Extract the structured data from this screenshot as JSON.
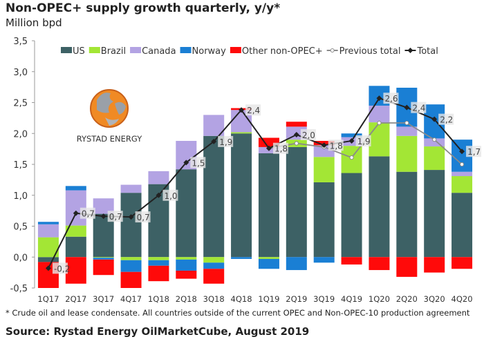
{
  "header": {
    "title": "Non-OPEC+ supply growth quarterly, y/y*",
    "subtitle": "Million bpd"
  },
  "logo": {
    "text": "RYSTAD ENERGY"
  },
  "footer": {
    "footnote": "* Crude oil and lease condensate. All countries outside of the current OPEC and Non-OPEC-10 production agreement",
    "source": "Source: Rystad Energy OilMarketCube, August 2019"
  },
  "chart_data": {
    "type": "bar",
    "stacked": true,
    "title": "Non-OPEC+ supply growth quarterly, y/y*",
    "ylabel": "Million bpd",
    "ylim": [
      -0.5,
      3.5
    ],
    "yticks": [
      "-0,5",
      "0,0",
      "0,5",
      "1,0",
      "1,5",
      "2,0",
      "2,5",
      "3,0",
      "3,5"
    ],
    "ytick_values": [
      -0.5,
      0,
      0.5,
      1,
      1.5,
      2,
      2.5,
      3,
      3.5
    ],
    "grid": false,
    "legend": "top",
    "categories": [
      "1Q17",
      "2Q17",
      "3Q17",
      "4Q17",
      "1Q18",
      "2Q18",
      "3Q18",
      "4Q18",
      "1Q19",
      "2Q19",
      "3Q19",
      "4Q19",
      "1Q20",
      "2Q20",
      "3Q20",
      "4Q20"
    ],
    "series": [
      {
        "name": "US",
        "color": "#3d6165",
        "values": [
          -0.08,
          0.33,
          0.7,
          1.04,
          1.18,
          1.42,
          1.96,
          2.0,
          1.68,
          1.78,
          1.21,
          1.36,
          1.63,
          1.38,
          1.41,
          1.04
        ]
      },
      {
        "name": "Brazil",
        "color": "#a3e635",
        "values": [
          0.32,
          0.18,
          -0.01,
          -0.05,
          -0.05,
          -0.04,
          -0.09,
          0.02,
          -0.03,
          0.12,
          0.41,
          0.44,
          0.55,
          0.58,
          0.38,
          0.27
        ]
      },
      {
        "name": "Canada",
        "color": "#b3a3e3",
        "values": [
          0.21,
          0.57,
          0.25,
          0.13,
          0.21,
          0.46,
          0.34,
          0.36,
          0.1,
          0.21,
          0.19,
          0.14,
          0.27,
          0.15,
          0.13,
          0.07
        ]
      },
      {
        "name": "Norway",
        "color": "#1a7fd4",
        "values": [
          0.04,
          0.07,
          -0.03,
          -0.19,
          -0.09,
          -0.18,
          -0.1,
          -0.03,
          -0.16,
          -0.21,
          -0.09,
          0.06,
          0.32,
          0.63,
          0.55,
          0.52
        ]
      },
      {
        "name": "Other non-OPEC+",
        "color": "#ff0a0a",
        "values": [
          -0.42,
          -0.43,
          -0.25,
          -0.26,
          -0.25,
          -0.13,
          -0.24,
          0.03,
          0.15,
          0.08,
          0.07,
          -0.12,
          -0.21,
          -0.32,
          -0.25,
          -0.19
        ]
      }
    ],
    "lines": [
      {
        "name": "Previous total",
        "color": "#8a8a8a",
        "marker": "open-circle",
        "values": [
          null,
          null,
          null,
          null,
          null,
          null,
          null,
          null,
          1.76,
          1.84,
          1.78,
          1.61,
          2.17,
          2.17,
          1.9,
          1.5
        ]
      },
      {
        "name": "Total",
        "color": "#222222",
        "marker": "diamond",
        "values": [
          -0.18,
          0.71,
          0.66,
          0.65,
          1.0,
          1.53,
          1.87,
          2.38,
          1.76,
          1.98,
          1.81,
          1.88,
          2.57,
          2.42,
          2.23,
          1.71
        ],
        "labels": [
          "-0,2",
          "0,7",
          "0,7",
          "0,7",
          "1,0",
          "1,5",
          "1,9",
          "2,4",
          "1,8",
          "2,0",
          "1,8",
          "1,9",
          "2,6",
          "2,4",
          "2,2",
          "1,7"
        ]
      }
    ]
  }
}
